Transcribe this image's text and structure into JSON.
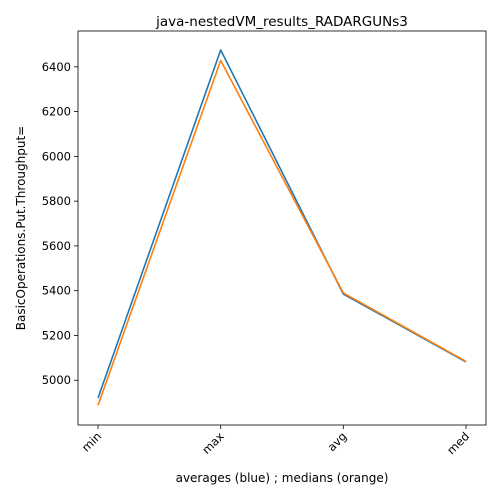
{
  "chart_data": {
    "type": "line",
    "title": "java-nestedVM_results_RADARGUNs3",
    "xlabel": "averages (blue) ; medians (orange)",
    "ylabel": "BasicOperations.Put.Throughput=",
    "categories": [
      "min",
      "max",
      "avg",
      "med"
    ],
    "series": [
      {
        "color": "#1f77b4",
        "values": [
          4920,
          6475,
          5385,
          5082
        ]
      },
      {
        "color": "#ff7f0e",
        "values": [
          4888,
          6428,
          5390,
          5084
        ]
      }
    ],
    "ylim": [
      4800,
      6560
    ],
    "yticks": [
      5000,
      5200,
      5400,
      5600,
      5800,
      6000,
      6200,
      6400
    ],
    "grid": false,
    "x_tick_rotation_deg": 45
  }
}
